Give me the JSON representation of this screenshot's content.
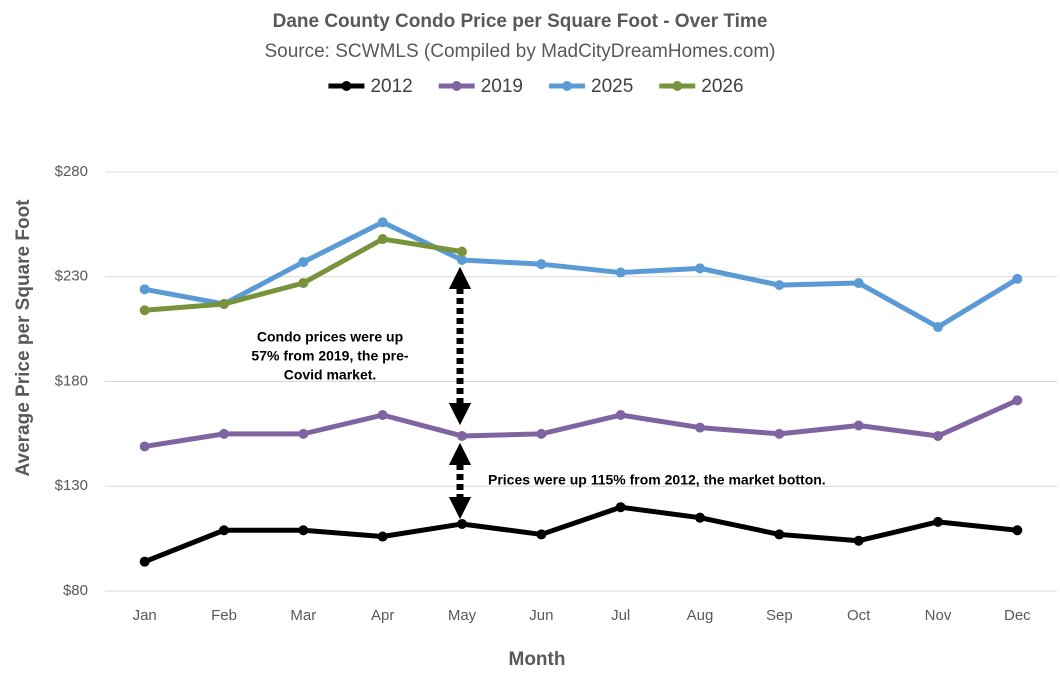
{
  "chart_data": {
    "type": "line",
    "title": "Dane County Condo Price per Square Foot - Over Time",
    "subtitle": "Source: SCWMLS (Compiled by MadCityDreamHomes.com)",
    "x_label": "Month",
    "y_label": "Average Price per Square Foot",
    "categories": [
      "Jan",
      "Feb",
      "Mar",
      "Apr",
      "May",
      "Jun",
      "Jul",
      "Aug",
      "Sep",
      "Oct",
      "Nov",
      "Dec"
    ],
    "series": [
      {
        "name": "2012",
        "color": "#000000",
        "values": [
          94,
          109,
          109,
          106,
          112,
          107,
          120,
          115,
          107,
          104,
          113,
          109
        ]
      },
      {
        "name": "2019",
        "color": "#8064a2",
        "values": [
          149,
          155,
          155,
          164,
          154,
          155,
          164,
          158,
          155,
          159,
          154,
          171
        ]
      },
      {
        "name": "2025",
        "color": "#5b9bd5",
        "values": [
          224,
          217,
          237,
          256,
          238,
          236,
          232,
          234,
          226,
          227,
          206,
          229
        ]
      },
      {
        "name": "2026",
        "color": "#77933c",
        "values": [
          214,
          217,
          227,
          248,
          242,
          null,
          null,
          null,
          null,
          null,
          null,
          null
        ]
      }
    ],
    "ylim": [
      80,
      280
    ],
    "yticks": [
      {
        "value": 80,
        "label": "$80"
      },
      {
        "value": 130,
        "label": "$130"
      },
      {
        "value": 180,
        "label": "$180"
      },
      {
        "value": 230,
        "label": "$230"
      },
      {
        "value": 280,
        "label": "$280"
      }
    ],
    "grid": true,
    "annotations": [
      [
        "Condo prices were up",
        "57% from 2019, the pre-",
        "Covid market."
      ],
      [
        "Prices were up 115% from 2012, the market botton."
      ]
    ]
  }
}
